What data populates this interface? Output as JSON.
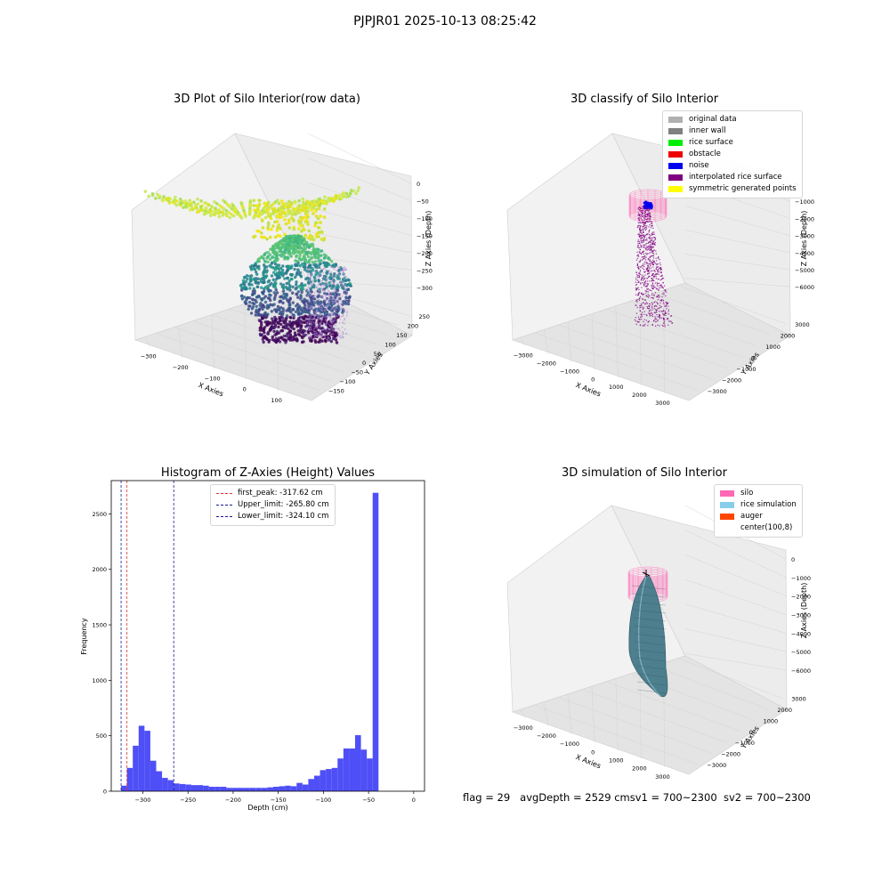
{
  "figure": {
    "title": "PJPJR01 2025-10-13 08:25:42",
    "footer": {
      "flag": "flag = 29",
      "avg_depth": "avgDepth = 2529 cm",
      "sv1": "sv1 = 700~2300",
      "sv2": "sv2 = 700~2300"
    }
  },
  "colors": {
    "hist_bar": "#4f4ff7",
    "first_peak": "#e03030",
    "limits": "#1a1a99",
    "silo": "#ff69b4",
    "rice_simulation": "#87ceeb",
    "auger": "#ff4500",
    "original_data": "#b0b0b0",
    "inner_wall": "#808080",
    "rice_surface": "#00ee00",
    "obstacle": "#ee0000",
    "noise": "#0000ee",
    "interpolated": "#800080",
    "symmetric": "#ffff00"
  },
  "chart_data": [
    {
      "type": "scatter",
      "title": "3D Plot of Silo Interior(row data)",
      "xlabel": "X Axies",
      "ylabel": "Y Axies",
      "zlabel": "Z Axies (Depth)",
      "x_ticks": [
        "−300",
        "−200",
        "−100",
        "0",
        "100"
      ],
      "y_ticks": [
        "250",
        "200",
        "150",
        "100",
        "50",
        "0",
        "−50",
        "−100",
        "−150"
      ],
      "z_ticks": [
        "0",
        "−50",
        "−100",
        "−150",
        "−200",
        "−250",
        "−300"
      ]
    },
    {
      "type": "scatter",
      "title": "3D classify of Silo Interior",
      "xlabel": "X Axies",
      "ylabel": "Y Axies",
      "zlabel": "Z Axies (Depth)",
      "x_ticks": [
        "−3000",
        "−2000",
        "−1000",
        "0",
        "1000",
        "2000",
        "3000"
      ],
      "y_ticks": [
        "3000",
        "2000",
        "1000",
        "0",
        "−1000",
        "−2000",
        "−3000"
      ],
      "z_ticks": [
        "0",
        "−1000",
        "−2000",
        "−3000",
        "−4000",
        "−5000",
        "−6000"
      ],
      "legend": [
        {
          "label": "original data",
          "color": "#b0b0b0"
        },
        {
          "label": "inner wall",
          "color": "#808080"
        },
        {
          "label": "rice surface",
          "color": "#00ee00"
        },
        {
          "label": "obstacle",
          "color": "#ee0000"
        },
        {
          "label": "noise",
          "color": "#0000ee"
        },
        {
          "label": "interpolated rice surface",
          "color": "#800080"
        },
        {
          "label": "symmetric generated points",
          "color": "#ffff00"
        }
      ]
    },
    {
      "type": "bar",
      "title": "Histogram of Z-Axies (Height) Values",
      "xlabel": "Depth (cm)",
      "ylabel": "Frequency",
      "xlim": [
        -335,
        12
      ],
      "ylim": [
        0,
        2800
      ],
      "x_ticks": [
        -300,
        -250,
        -200,
        -150,
        -100,
        -50,
        0
      ],
      "y_ticks": [
        0,
        500,
        1000,
        1500,
        2000,
        2500
      ],
      "bin_start": -324.1,
      "bin_width": 6.48,
      "values": [
        50,
        210,
        410,
        590,
        545,
        275,
        180,
        120,
        100,
        70,
        65,
        60,
        55,
        55,
        50,
        40,
        40,
        40,
        30,
        30,
        30,
        30,
        30,
        30,
        30,
        35,
        40,
        45,
        50,
        45,
        75,
        60,
        110,
        140,
        190,
        200,
        210,
        295,
        385,
        385,
        505,
        375,
        295,
        2690
      ],
      "lines": [
        {
          "label": "first_peak: -317.62 cm",
          "x": -317.62,
          "color": "#e03030"
        },
        {
          "label": "Upper_limit: -265.80 cm",
          "x": -265.8,
          "color": "#1a1a99"
        },
        {
          "label": "Lower_limit: -324.10 cm",
          "x": -324.1,
          "color": "#1a1a99"
        }
      ]
    },
    {
      "type": "area",
      "title": "3D simulation of Silo Interior",
      "xlabel": "X Axies",
      "ylabel": "Y Axies",
      "zlabel": "Z Axies (Depth)",
      "x_ticks": [
        "−3000",
        "−2000",
        "−1000",
        "0",
        "1000",
        "2000",
        "3000"
      ],
      "y_ticks": [
        "3000",
        "2000",
        "1000",
        "0",
        "−1000",
        "−2000",
        "−3000"
      ],
      "z_ticks": [
        "0",
        "−1000",
        "−2000",
        "−3000",
        "−4000",
        "−5000",
        "−6000"
      ],
      "legend": [
        {
          "label": "silo",
          "color": "#ff69b4"
        },
        {
          "label": "rice simulation",
          "color": "#87ceeb"
        },
        {
          "label": "auger",
          "color": "#ff4500"
        },
        {
          "label": "center(100,8)",
          "color": "#ffffff"
        }
      ]
    }
  ]
}
